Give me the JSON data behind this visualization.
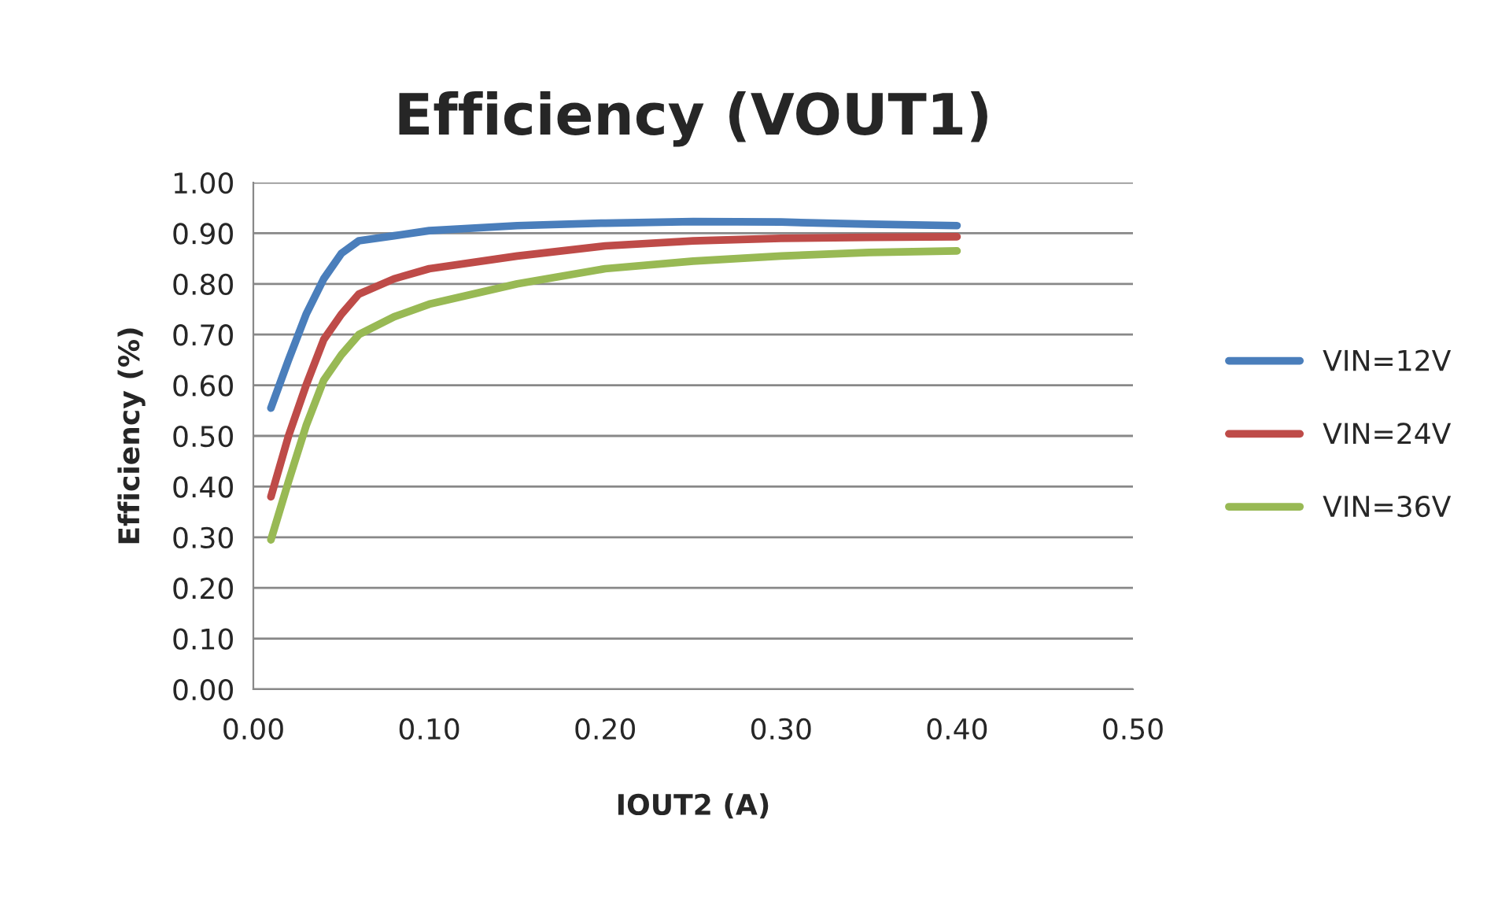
{
  "chart_data": {
    "type": "line",
    "title": "Efficiency (VOUT1)",
    "xlabel": "IOUT2 (A)",
    "ylabel": "Efficiency (%)",
    "x": [
      0.01,
      0.02,
      0.03,
      0.04,
      0.05,
      0.06,
      0.08,
      0.1,
      0.15,
      0.2,
      0.25,
      0.3,
      0.35,
      0.4
    ],
    "series": [
      {
        "name": "VIN=12V",
        "color": "#4a7ebb",
        "values": [
          0.555,
          0.65,
          0.74,
          0.81,
          0.86,
          0.885,
          0.895,
          0.905,
          0.915,
          0.92,
          0.923,
          0.922,
          0.918,
          0.915
        ]
      },
      {
        "name": "VIN=24V",
        "color": "#be4b48",
        "values": [
          0.38,
          0.5,
          0.6,
          0.69,
          0.74,
          0.78,
          0.81,
          0.83,
          0.855,
          0.875,
          0.885,
          0.89,
          0.892,
          0.893
        ]
      },
      {
        "name": "VIN=36V",
        "color": "#98b954",
        "values": [
          0.295,
          0.41,
          0.52,
          0.61,
          0.66,
          0.7,
          0.735,
          0.76,
          0.8,
          0.83,
          0.845,
          0.855,
          0.862,
          0.865
        ]
      }
    ],
    "xlim": [
      0,
      0.5
    ],
    "xticks": [
      {
        "value": 0,
        "label": "0.00"
      },
      {
        "value": 0.1,
        "label": "0.10"
      },
      {
        "value": 0.2,
        "label": "0.20"
      },
      {
        "value": 0.3,
        "label": "0.30"
      },
      {
        "value": 0.4,
        "label": "0.40"
      },
      {
        "value": 0.5,
        "label": "0.50"
      }
    ],
    "ylim": [
      0,
      1
    ],
    "yticks": [
      {
        "value": 0,
        "label": "0.00"
      },
      {
        "value": 0.1,
        "label": "0.10"
      },
      {
        "value": 0.2,
        "label": "0.20"
      },
      {
        "value": 0.3,
        "label": "0.30"
      },
      {
        "value": 0.4,
        "label": "0.40"
      },
      {
        "value": 0.5,
        "label": "0.50"
      },
      {
        "value": 0.6,
        "label": "0.60"
      },
      {
        "value": 0.7,
        "label": "0.70"
      },
      {
        "value": 0.8,
        "label": "0.80"
      },
      {
        "value": 0.9,
        "label": "0.90"
      },
      {
        "value": 1,
        "label": "1.00"
      }
    ],
    "grid": "y",
    "legend": "right",
    "marker": "none",
    "line_style": "solid"
  }
}
